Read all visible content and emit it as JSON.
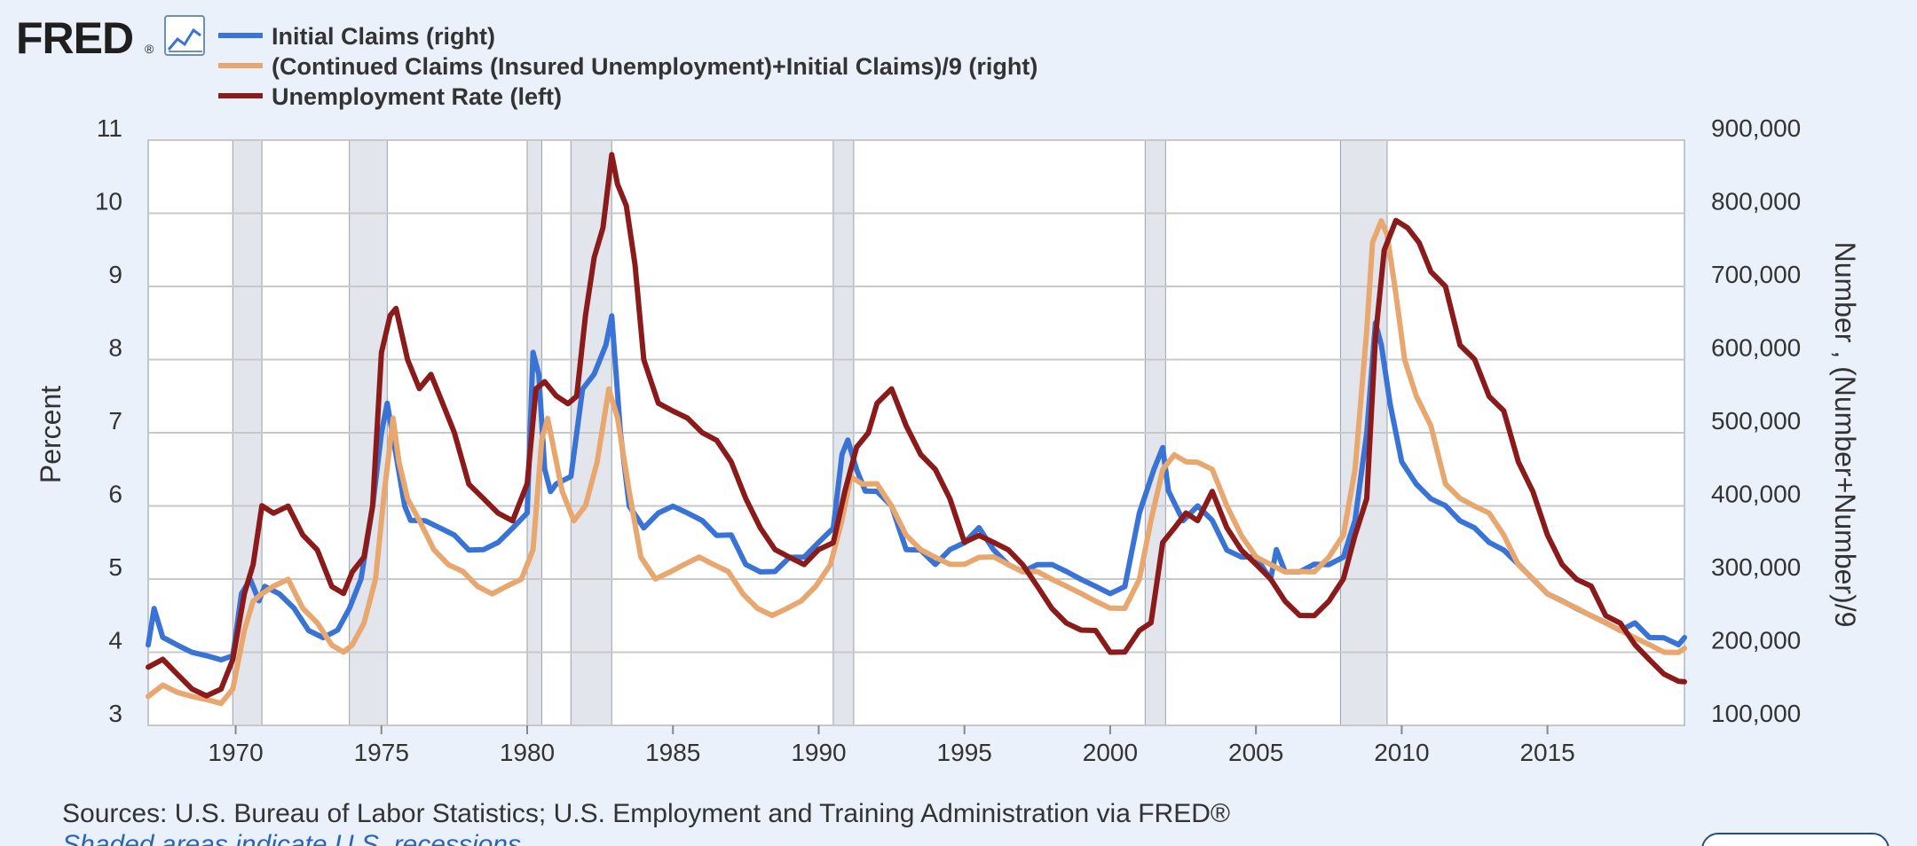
{
  "brand": {
    "logo_text": "FRED",
    "logo_mark": "®",
    "chart_icon": "line-chart-icon"
  },
  "legend": [
    {
      "label": "Initial Claims (right)",
      "color": "#3a73d6"
    },
    {
      "label": "(Continued Claims (Insured Unemployment)+Initial Claims)/9 (right)",
      "color": "#e8a76e"
    },
    {
      "label": "Unemployment Rate (left)",
      "color": "#8b1a1a"
    }
  ],
  "footer": {
    "sources": "Sources: U.S. Bureau of Labor Statistics; U.S. Employment and Training Administration via FRED®",
    "shaded_note": "Shaded areas indicate U.S. recessions"
  },
  "chart_data": {
    "type": "line",
    "ylabel_left": "Percent",
    "ylabel_right": "Number , (Number+Number)/9",
    "x_range": [
      1967.0,
      2019.7
    ],
    "y_left_range": [
      3,
      11
    ],
    "y_right_range": [
      100000,
      900000
    ],
    "x_ticks": [
      1970,
      1975,
      1980,
      1985,
      1990,
      1995,
      2000,
      2005,
      2010,
      2015
    ],
    "y_left_ticks": [
      3,
      4,
      5,
      6,
      7,
      8,
      9,
      10,
      11
    ],
    "y_right_ticks": [
      "100,000",
      "200,000",
      "300,000",
      "400,000",
      "500,000",
      "600,000",
      "700,000",
      "800,000",
      "900,000"
    ],
    "grid": true,
    "recessions": [
      [
        1969.9,
        1970.9
      ],
      [
        1973.9,
        1975.2
      ],
      [
        1980.0,
        1980.5
      ],
      [
        1981.5,
        1982.9
      ],
      [
        1990.5,
        1991.2
      ],
      [
        2001.2,
        2001.9
      ],
      [
        2007.9,
        2009.5
      ]
    ],
    "series": [
      {
        "name": "Initial Claims (right)",
        "axis": "right",
        "color": "#3a73d6",
        "x": [
          1967.0,
          1967.2,
          1967.5,
          1968.0,
          1968.5,
          1969.0,
          1969.5,
          1969.9,
          1970.2,
          1970.5,
          1970.8,
          1971.0,
          1971.5,
          1972.0,
          1972.5,
          1973.0,
          1973.5,
          1973.9,
          1974.3,
          1974.7,
          1975.0,
          1975.2,
          1975.5,
          1975.8,
          1976.0,
          1976.5,
          1977.0,
          1977.5,
          1978.0,
          1978.5,
          1979.0,
          1979.5,
          1980.0,
          1980.2,
          1980.4,
          1980.6,
          1980.8,
          1981.0,
          1981.5,
          1981.9,
          1982.3,
          1982.7,
          1982.9,
          1983.2,
          1983.5,
          1984.0,
          1984.5,
          1985.0,
          1985.5,
          1986.0,
          1986.5,
          1987.0,
          1987.5,
          1988.0,
          1988.5,
          1989.0,
          1989.5,
          1990.0,
          1990.5,
          1990.8,
          1991.0,
          1991.3,
          1991.6,
          1992.0,
          1992.5,
          1993.0,
          1993.5,
          1994.0,
          1994.5,
          1995.0,
          1995.5,
          1996.0,
          1996.5,
          1997.0,
          1997.5,
          1998.0,
          1998.5,
          1999.0,
          1999.5,
          2000.0,
          2000.5,
          2001.0,
          2001.5,
          2001.8,
          2002.0,
          2002.5,
          2003.0,
          2003.5,
          2004.0,
          2004.5,
          2005.0,
          2005.5,
          2005.7,
          2006.0,
          2006.5,
          2007.0,
          2007.5,
          2008.0,
          2008.4,
          2008.8,
          2009.1,
          2009.3,
          2009.6,
          2010.0,
          2010.5,
          2011.0,
          2011.5,
          2012.0,
          2012.5,
          2013.0,
          2013.5,
          2014.0,
          2014.5,
          2015.0,
          2015.5,
          2016.0,
          2016.5,
          2017.0,
          2017.5,
          2018.0,
          2018.5,
          2019.0,
          2019.5,
          2019.7
        ],
        "values": [
          210000,
          260000,
          220000,
          210000,
          200000,
          195000,
          190000,
          195000,
          280000,
          300000,
          270000,
          290000,
          280000,
          260000,
          230000,
          220000,
          230000,
          260000,
          300000,
          400000,
          500000,
          540000,
          470000,
          400000,
          380000,
          380000,
          370000,
          360000,
          340000,
          340000,
          350000,
          370000,
          390000,
          610000,
          580000,
          450000,
          420000,
          430000,
          440000,
          560000,
          580000,
          620000,
          660000,
          500000,
          400000,
          370000,
          390000,
          400000,
          390000,
          380000,
          360000,
          360000,
          320000,
          310000,
          310000,
          330000,
          330000,
          350000,
          370000,
          470000,
          490000,
          450000,
          420000,
          420000,
          400000,
          340000,
          340000,
          320000,
          340000,
          350000,
          370000,
          340000,
          320000,
          310000,
          320000,
          320000,
          310000,
          300000,
          290000,
          280000,
          290000,
          390000,
          450000,
          480000,
          420000,
          380000,
          400000,
          380000,
          340000,
          330000,
          330000,
          300000,
          340000,
          310000,
          310000,
          320000,
          320000,
          330000,
          380000,
          500000,
          650000,
          620000,
          540000,
          460000,
          430000,
          410000,
          400000,
          380000,
          370000,
          350000,
          340000,
          320000,
          300000,
          280000,
          270000,
          260000,
          250000,
          240000,
          230000,
          240000,
          220000,
          220000,
          210000,
          220000
        ],
        "points": ""
      },
      {
        "name": "(Continued Claims (Insured Unemployment)+Initial Claims)/9 (right)",
        "axis": "right",
        "color": "#e8a76e",
        "x": [
          1967.0,
          1967.5,
          1968.0,
          1968.5,
          1969.0,
          1969.5,
          1969.9,
          1970.3,
          1970.6,
          1970.9,
          1971.3,
          1971.8,
          1972.3,
          1972.8,
          1973.3,
          1973.7,
          1974.0,
          1974.4,
          1974.8,
          1975.1,
          1975.4,
          1975.6,
          1975.9,
          1976.3,
          1976.8,
          1977.3,
          1977.8,
          1978.3,
          1978.8,
          1979.3,
          1979.8,
          1980.2,
          1980.5,
          1980.7,
          1980.9,
          1981.2,
          1981.6,
          1982.0,
          1982.4,
          1982.8,
          1983.1,
          1983.5,
          1983.9,
          1984.4,
          1984.9,
          1985.4,
          1985.9,
          1986.4,
          1986.9,
          1987.4,
          1987.9,
          1988.4,
          1988.9,
          1989.4,
          1989.9,
          1990.4,
          1990.8,
          1991.1,
          1991.5,
          1992.0,
          1992.5,
          1993.0,
          1993.5,
          1994.0,
          1994.5,
          1995.0,
          1995.5,
          1996.0,
          1996.5,
          1997.0,
          1997.5,
          1998.0,
          1998.5,
          1999.0,
          1999.5,
          2000.0,
          2000.5,
          2001.0,
          2001.4,
          2001.8,
          2002.2,
          2002.6,
          2003.0,
          2003.5,
          2004.0,
          2004.5,
          2005.0,
          2005.5,
          2006.0,
          2006.5,
          2007.0,
          2007.5,
          2008.0,
          2008.4,
          2008.8,
          2009.0,
          2009.3,
          2009.5,
          2009.8,
          2010.1,
          2010.5,
          2011.0,
          2011.5,
          2012.0,
          2012.5,
          2013.0,
          2013.5,
          2014.0,
          2014.5,
          2015.0,
          2015.5,
          2016.0,
          2016.5,
          2017.0,
          2017.5,
          2018.0,
          2018.5,
          2019.0,
          2019.5,
          2019.7
        ],
        "values": [
          140000,
          155000,
          145000,
          140000,
          135000,
          130000,
          150000,
          230000,
          270000,
          280000,
          290000,
          300000,
          260000,
          240000,
          210000,
          200000,
          210000,
          240000,
          300000,
          420000,
          520000,
          460000,
          410000,
          380000,
          340000,
          320000,
          310000,
          290000,
          280000,
          290000,
          300000,
          340000,
          490000,
          520000,
          480000,
          420000,
          380000,
          400000,
          460000,
          560000,
          520000,
          420000,
          330000,
          300000,
          310000,
          320000,
          330000,
          320000,
          310000,
          280000,
          260000,
          250000,
          260000,
          270000,
          290000,
          320000,
          380000,
          440000,
          430000,
          430000,
          400000,
          360000,
          340000,
          330000,
          320000,
          320000,
          330000,
          330000,
          320000,
          310000,
          310000,
          300000,
          290000,
          280000,
          270000,
          260000,
          260000,
          300000,
          380000,
          450000,
          470000,
          460000,
          460000,
          450000,
          400000,
          360000,
          330000,
          320000,
          310000,
          310000,
          310000,
          330000,
          360000,
          450000,
          640000,
          760000,
          790000,
          770000,
          690000,
          600000,
          550000,
          510000,
          430000,
          410000,
          400000,
          390000,
          360000,
          320000,
          300000,
          280000,
          270000,
          260000,
          250000,
          240000,
          230000,
          220000,
          210000,
          200000,
          200000,
          205000
        ],
        "points": ""
      },
      {
        "name": "Unemployment Rate (left)",
        "axis": "left",
        "color": "#8b1a1a",
        "x": [
          1967.0,
          1967.5,
          1968.0,
          1968.5,
          1969.0,
          1969.5,
          1969.9,
          1970.3,
          1970.6,
          1970.9,
          1971.3,
          1971.8,
          1972.3,
          1972.8,
          1973.3,
          1973.7,
          1974.0,
          1974.4,
          1974.7,
          1975.0,
          1975.3,
          1975.5,
          1975.9,
          1976.3,
          1976.7,
          1977.0,
          1977.5,
          1978.0,
          1978.5,
          1979.0,
          1979.5,
          1980.0,
          1980.3,
          1980.6,
          1981.0,
          1981.4,
          1981.7,
          1982.0,
          1982.3,
          1982.6,
          1982.9,
          1983.1,
          1983.4,
          1983.7,
          1984.0,
          1984.5,
          1985.0,
          1985.5,
          1986.0,
          1986.5,
          1987.0,
          1987.5,
          1988.0,
          1988.5,
          1989.0,
          1989.5,
          1990.0,
          1990.5,
          1990.9,
          1991.3,
          1991.7,
          1992.0,
          1992.5,
          1993.0,
          1993.5,
          1994.0,
          1994.5,
          1995.0,
          1995.5,
          1996.0,
          1996.5,
          1997.0,
          1997.5,
          1998.0,
          1998.5,
          1999.0,
          1999.5,
          2000.0,
          2000.5,
          2001.0,
          2001.4,
          2001.8,
          2002.2,
          2002.6,
          2003.0,
          2003.5,
          2004.0,
          2004.5,
          2005.0,
          2005.5,
          2006.0,
          2006.5,
          2007.0,
          2007.5,
          2008.0,
          2008.4,
          2008.8,
          2009.1,
          2009.4,
          2009.8,
          2010.2,
          2010.6,
          2011.0,
          2011.5,
          2012.0,
          2012.5,
          2013.0,
          2013.5,
          2014.0,
          2014.5,
          2015.0,
          2015.5,
          2016.0,
          2016.5,
          2017.0,
          2017.5,
          2018.0,
          2018.5,
          2019.0,
          2019.5,
          2019.7
        ],
        "values": [
          3.8,
          3.9,
          3.7,
          3.5,
          3.4,
          3.5,
          3.9,
          4.8,
          5.2,
          6.0,
          5.9,
          6.0,
          5.6,
          5.4,
          4.9,
          4.8,
          5.1,
          5.3,
          6.0,
          8.1,
          8.6,
          8.7,
          8.0,
          7.6,
          7.8,
          7.5,
          7.0,
          6.3,
          6.1,
          5.9,
          5.8,
          6.3,
          7.6,
          7.7,
          7.5,
          7.4,
          7.5,
          8.6,
          9.4,
          9.8,
          10.8,
          10.4,
          10.1,
          9.3,
          8.0,
          7.4,
          7.3,
          7.2,
          7.0,
          6.9,
          6.6,
          6.1,
          5.7,
          5.4,
          5.3,
          5.2,
          5.4,
          5.5,
          6.2,
          6.8,
          7.0,
          7.4,
          7.6,
          7.1,
          6.7,
          6.5,
          6.1,
          5.5,
          5.6,
          5.5,
          5.4,
          5.2,
          4.9,
          4.6,
          4.4,
          4.3,
          4.3,
          4.0,
          4.0,
          4.3,
          4.4,
          5.5,
          5.7,
          5.9,
          5.8,
          6.2,
          5.7,
          5.4,
          5.2,
          5.0,
          4.7,
          4.5,
          4.5,
          4.7,
          5.0,
          5.6,
          6.1,
          8.3,
          9.5,
          9.9,
          9.8,
          9.6,
          9.2,
          9.0,
          8.2,
          8.0,
          7.5,
          7.3,
          6.6,
          6.2,
          5.6,
          5.2,
          5.0,
          4.9,
          4.5,
          4.4,
          4.1,
          3.9,
          3.7,
          3.6,
          3.6
        ],
        "points": ""
      }
    ]
  }
}
